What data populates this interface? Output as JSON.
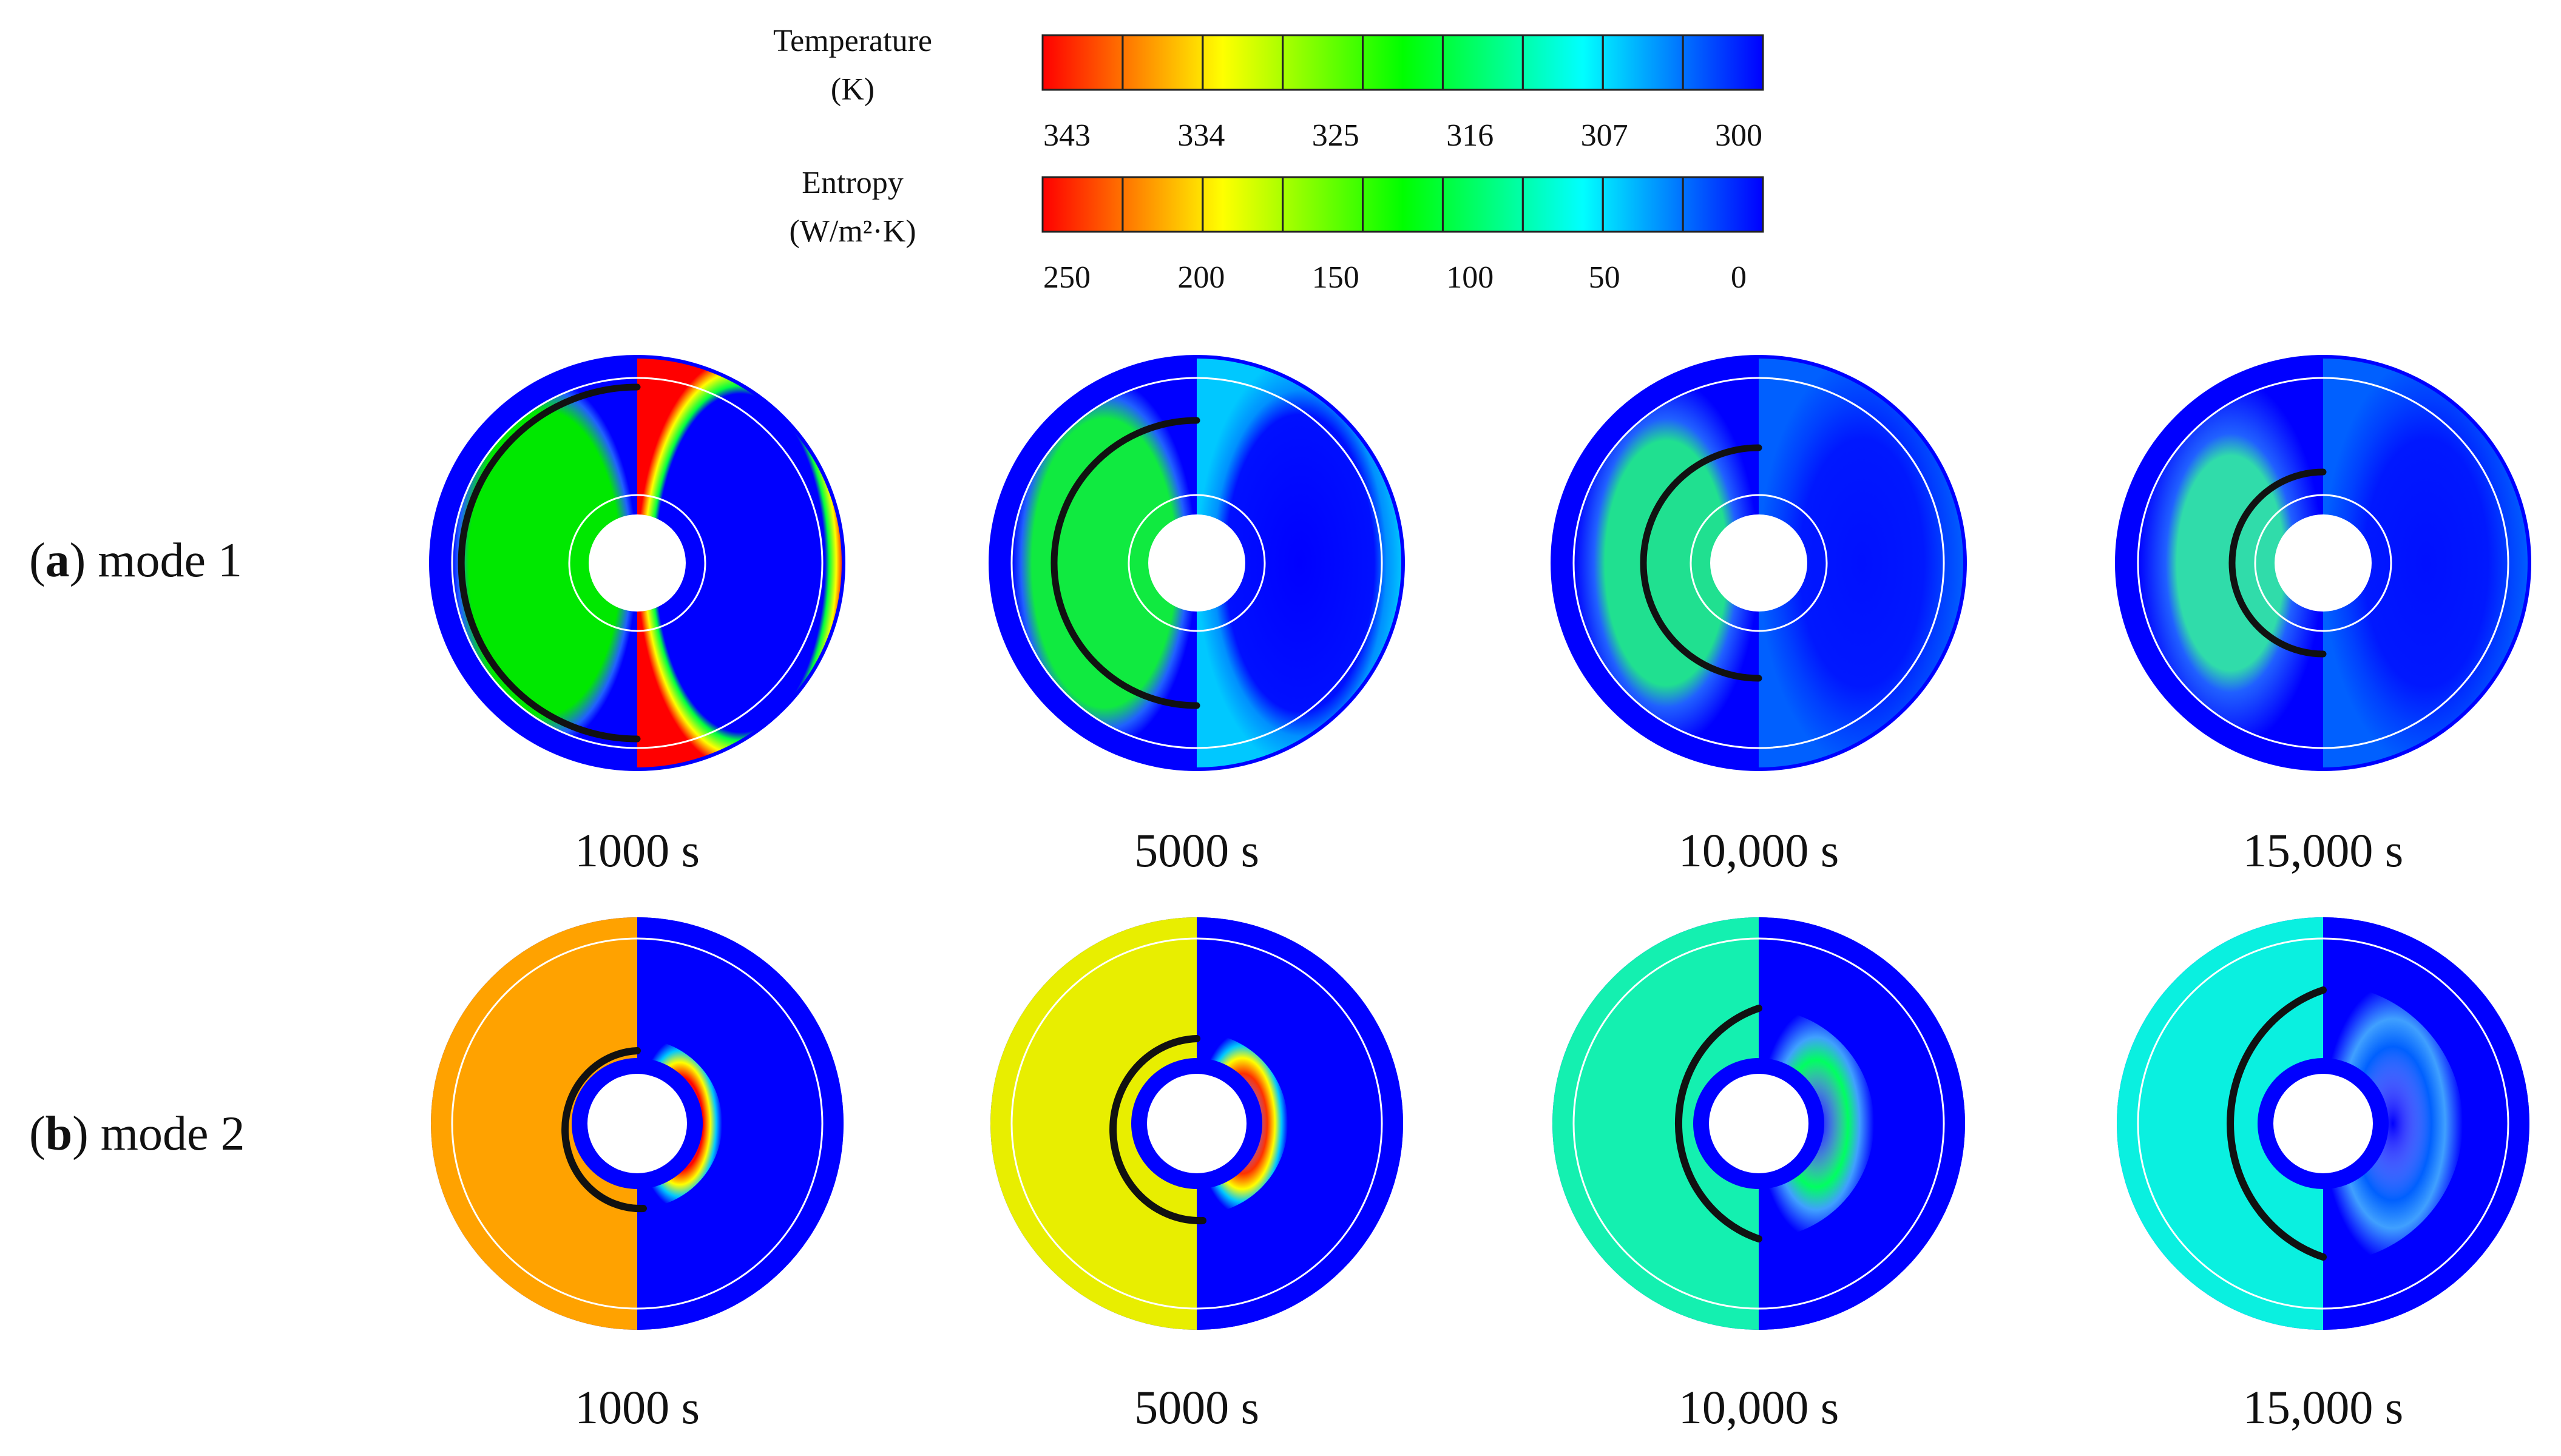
{
  "colorbars": {
    "colors": [
      "#ff0000",
      "#ff8000",
      "#ffff00",
      "#80ff00",
      "#00ff00",
      "#00ff80",
      "#00ffff",
      "#0080ff",
      "#0000ff"
    ],
    "temperature": {
      "title_line1": "Temperature",
      "title_line2": "(K)",
      "ticks": [
        "343",
        "334",
        "325",
        "316",
        "307",
        "300"
      ]
    },
    "entropy": {
      "title_line1": "Entropy",
      "title_line2": "(W/m²·K)",
      "ticks": [
        "250",
        "200",
        "150",
        "100",
        "50",
        "0"
      ]
    }
  },
  "rows": [
    {
      "label_open": "(",
      "label_letter": "a",
      "label_close": ") mode 1",
      "times": [
        "1000 s",
        "5000 s",
        "10,000 s",
        "15,000 s"
      ]
    },
    {
      "label_open": "(",
      "label_letter": "b",
      "label_close": ") mode 2",
      "times": [
        "1000 s",
        "5000 s",
        "10,000 s",
        "15,000 s"
      ]
    }
  ],
  "palette": {
    "blue": "#0000ff",
    "mode1_left": [
      "#00e800",
      "#10ea40",
      "#20e090",
      "#30dcaa"
    ],
    "mode2_left": [
      "#ffa200",
      "#e8ee00",
      "#14f0b0",
      "#0af0e0"
    ],
    "mode1_right_band": [
      "#ff0000",
      "#00c8ff",
      "#0060ff",
      "#0060ff"
    ],
    "mode2_right_band": [
      "#ff0000",
      "#ff3000",
      "#00ff60",
      "#0060ff"
    ]
  }
}
